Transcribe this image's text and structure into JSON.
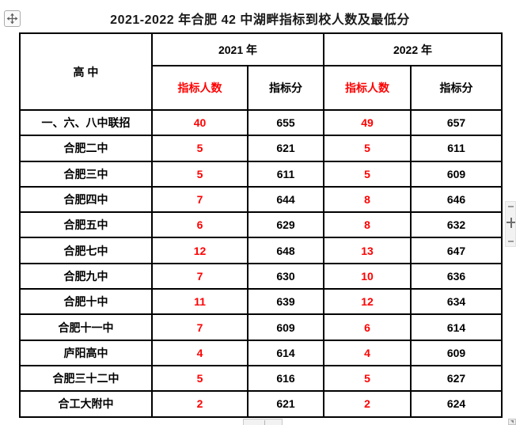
{
  "page": {
    "title": "2021-2022 年合肥 42 中湖畔指标到校人数及最低分"
  },
  "colors": {
    "quota_red": "#FF0000",
    "text": "#000000",
    "border": "#000000"
  },
  "icons": {
    "move_handle": "four-direction-move-icon",
    "plus_control": "plus-icon",
    "corner_grip": "scroll-corner-arrow-icon"
  },
  "table": {
    "corner_header": "高 中",
    "year_headers": [
      "2021 年",
      "2022 年"
    ],
    "sub_headers": {
      "quota": "指标人数",
      "score": "指标分"
    },
    "rows": [
      [
        "一、六、八中联招",
        "40",
        "655",
        "49",
        "657"
      ],
      [
        "合肥二中",
        "5",
        "621",
        "5",
        "611"
      ],
      [
        "合肥三中",
        "5",
        "611",
        "5",
        "609"
      ],
      [
        "合肥四中",
        "7",
        "644",
        "8",
        "646"
      ],
      [
        "合肥五中",
        "6",
        "629",
        "8",
        "632"
      ],
      [
        "合肥七中",
        "12",
        "648",
        "13",
        "647"
      ],
      [
        "合肥九中",
        "7",
        "630",
        "10",
        "636"
      ],
      [
        "合肥十中",
        "11",
        "639",
        "12",
        "634"
      ],
      [
        "合肥十一中",
        "7",
        "609",
        "6",
        "614"
      ],
      [
        "庐阳高中",
        "4",
        "614",
        "4",
        "609"
      ],
      [
        "合肥三十二中",
        "5",
        "616",
        "5",
        "627"
      ],
      [
        "合工大附中",
        "2",
        "621",
        "2",
        "624"
      ]
    ]
  }
}
